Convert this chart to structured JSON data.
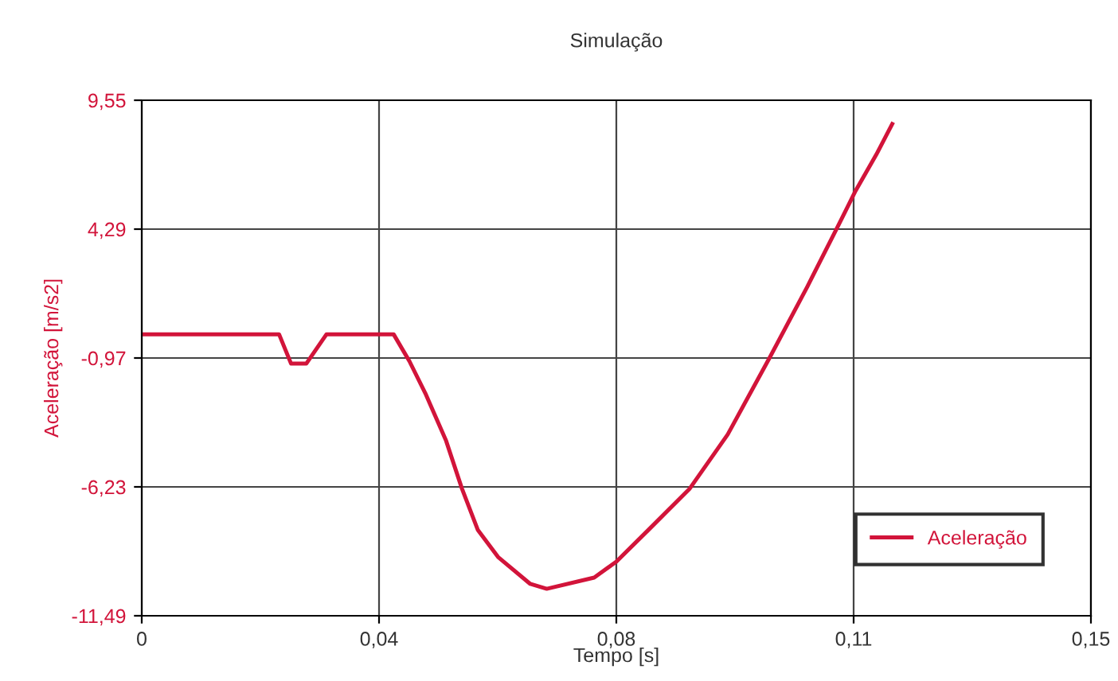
{
  "chart_data": {
    "type": "line",
    "title": "Simulação",
    "xlabel": "Tempo [s]",
    "ylabel": "Aceleração [m/s2]",
    "x": [
      0,
      0.0217,
      0.0236,
      0.026,
      0.0292,
      0.0398,
      0.0423,
      0.0448,
      0.0481,
      0.0506,
      0.0531,
      0.0563,
      0.0614,
      0.064,
      0.0715,
      0.075,
      0.0801,
      0.0866,
      0.0926,
      0.0992,
      0.1052,
      0.1103,
      0.1128,
      0.1161,
      0.1186
    ],
    "series": [
      {
        "name": "Aceleração",
        "color": "#d2143a",
        "values": [
          0,
          0,
          -1.2,
          -1.2,
          0,
          0,
          -1.1,
          -2.4,
          -4.35,
          -6.3,
          -7.98,
          -9.09,
          -10.19,
          -10.39,
          -9.93,
          -9.28,
          -7.98,
          -6.3,
          -4.09,
          -0.97,
          1.95,
          4.55,
          5.85,
          7.34,
          8.58
        ]
      }
    ],
    "xlim": [
      0,
      0.15
    ],
    "xticks": [
      0,
      {
        "value": 0.0375,
        "label": "0,04"
      },
      {
        "value": 0.075,
        "label": "0,08"
      },
      {
        "value": 0.1125,
        "label": "0,11"
      },
      {
        "value": 0.15,
        "label": "0,15"
      }
    ],
    "ylim": [
      -11.49,
      9.55
    ],
    "yticks": [
      {
        "value": -11.49,
        "label": "-11,49"
      },
      {
        "value": -6.23,
        "label": "-6,23"
      },
      {
        "value": -0.97,
        "label": "-0,97"
      },
      {
        "value": 4.29,
        "label": "4,29"
      },
      {
        "value": 9.55,
        "label": "9,55"
      }
    ],
    "grid": true,
    "legend": "bottom right",
    "marker": "none",
    "line_style": "solid"
  }
}
